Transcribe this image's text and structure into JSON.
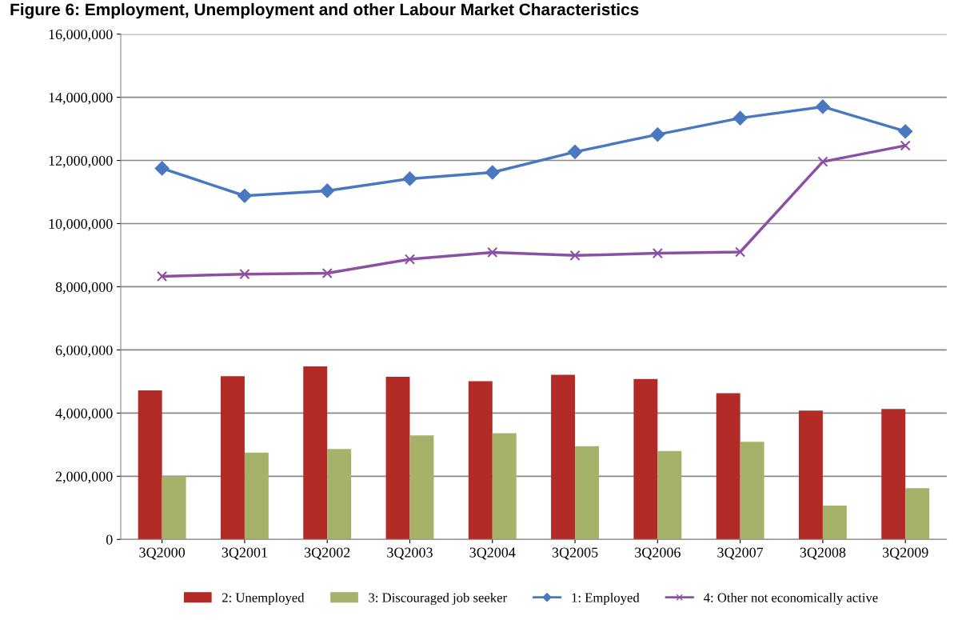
{
  "chart_data": {
    "type": "bar",
    "title": "Figure 6: Employment, Unemployment and other Labour Market Characteristics",
    "categories": [
      "3Q2000",
      "3Q2001",
      "3Q2002",
      "3Q2003",
      "3Q2004",
      "3Q2005",
      "3Q2006",
      "3Q2007",
      "3Q2008",
      "3Q2009"
    ],
    "series": [
      {
        "name": "2: Unemployed",
        "color": "#b22b26",
        "values": [
          4720000,
          5170000,
          5480000,
          5150000,
          5010000,
          5210000,
          5080000,
          4630000,
          4080000,
          4130000
        ]
      },
      {
        "name": "3: Discouraged job seeker",
        "color": "#a6b26a",
        "values": [
          2000000,
          2750000,
          2860000,
          3290000,
          3360000,
          2950000,
          2800000,
          3090000,
          1070000,
          1620000
        ]
      },
      {
        "name": "1: Employed",
        "type": "line",
        "marker": "diamond",
        "color": "#4a78c0",
        "values": [
          11750000,
          10880000,
          11040000,
          11420000,
          11620000,
          12270000,
          12820000,
          13340000,
          13700000,
          12920000
        ]
      },
      {
        "name": "4: Other not economically active",
        "type": "line",
        "marker": "cross",
        "color": "#8b4fa3",
        "values": [
          8330000,
          8400000,
          8430000,
          8870000,
          9090000,
          8990000,
          9060000,
          9100000,
          11960000,
          12470000
        ]
      }
    ],
    "ylim": [
      0,
      16000000
    ],
    "yticks": [
      {
        "value": 0,
        "label": "0"
      },
      {
        "value": 2000000,
        "label": "2,000,000"
      },
      {
        "value": 4000000,
        "label": "4,000,000"
      },
      {
        "value": 6000000,
        "label": "6,000,000"
      },
      {
        "value": 8000000,
        "label": "8,000,000"
      },
      {
        "value": 10000000,
        "label": "10,000,000"
      },
      {
        "value": 12000000,
        "label": "12,000,000"
      },
      {
        "value": 14000000,
        "label": "14,000,000"
      },
      {
        "value": 16000000,
        "label": "16,000,000"
      }
    ],
    "grid": "y",
    "legend": "bottom"
  }
}
